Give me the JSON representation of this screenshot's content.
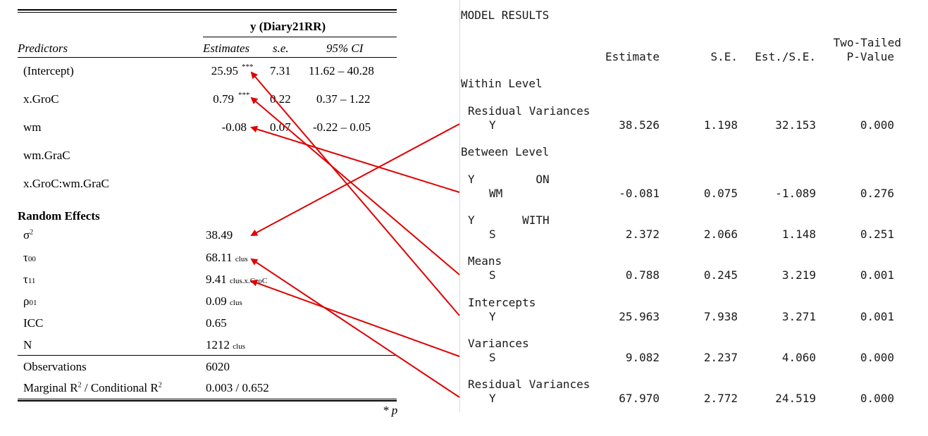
{
  "left_table": {
    "dep_var": "y (Diary21RR)",
    "headers": {
      "predictors": "Predictors",
      "estimates": "Estimates",
      "se": "s.e.",
      "ci": "95% CI"
    },
    "fixed": [
      {
        "name": "(Intercept)",
        "est": "25.95",
        "stars": "***",
        "se": "7.31",
        "ci": "11.62 – 40.28"
      },
      {
        "name": "x.GroC",
        "est": "0.79",
        "stars": "***",
        "se": "0.22",
        "ci": "0.37 – 1.22"
      },
      {
        "name": "wm",
        "est": "-0.08",
        "stars": "",
        "se": "0.07",
        "ci": "-0.22 – 0.05"
      },
      {
        "name": "wm.GraC",
        "est": "",
        "stars": "",
        "se": "",
        "ci": ""
      },
      {
        "name": "x.GroC:wm.GraC",
        "est": "",
        "stars": "",
        "se": "",
        "ci": ""
      }
    ],
    "random_title": "Random Effects",
    "random": [
      {
        "sym": "σ",
        "sup": "2",
        "sub": "",
        "val": "38.49",
        "vsub": ""
      },
      {
        "sym": "τ",
        "sup": "",
        "sub": "00",
        "val": "68.11",
        "vsub": "clus"
      },
      {
        "sym": "τ",
        "sup": "",
        "sub": "11",
        "val": "9.41",
        "vsub": "clus.x.GroC"
      },
      {
        "sym": "ρ",
        "sup": "",
        "sub": "01",
        "val": "0.09",
        "vsub": "clus"
      },
      {
        "sym": "ICC",
        "sup": "",
        "sub": "",
        "val": "0.65",
        "vsub": ""
      },
      {
        "sym": "N",
        "sup": "",
        "sub": "",
        "val": "1212",
        "vsub": "clus"
      }
    ],
    "observations": {
      "label": "Observations",
      "val": "6020"
    },
    "r2": {
      "label_a": "Marginal R",
      "label_b": " / Conditional R",
      "sup": "2",
      "val": "0.003 / 0.652"
    },
    "footnote": "* p"
  },
  "right_output": {
    "title": "MODEL RESULTS",
    "headers": {
      "estimate": "Estimate",
      "se": "S.E.",
      "ratio": "Est./S.E.",
      "pval_a": "Two-Tailed",
      "pval_b": "P-Value"
    },
    "within": "Within Level",
    "between": "Between Level",
    "blocks": [
      {
        "label": "Residual Variances",
        "sub": "Y",
        "est": "38.526",
        "se": "1.198",
        "ratio": "32.153",
        "p": "0.000"
      },
      {
        "label": "Y         ON",
        "sub": "WM",
        "est": "-0.081",
        "se": "0.075",
        "ratio": "-1.089",
        "p": "0.276"
      },
      {
        "label": "Y       WITH",
        "sub": "S",
        "est": "2.372",
        "se": "2.066",
        "ratio": "1.148",
        "p": "0.251"
      },
      {
        "label": "Means",
        "sub": "S",
        "est": "0.788",
        "se": "0.245",
        "ratio": "3.219",
        "p": "0.001"
      },
      {
        "label": "Intercepts",
        "sub": "Y",
        "est": "25.963",
        "se": "7.938",
        "ratio": "3.271",
        "p": "0.001"
      },
      {
        "label": "Variances",
        "sub": "S",
        "est": "9.082",
        "se": "2.237",
        "ratio": "4.060",
        "p": "0.000"
      },
      {
        "label": "Residual Variances",
        "sub": "Y",
        "est": "67.970",
        "se": "2.772",
        "ratio": "24.519",
        "p": "0.000"
      }
    ]
  },
  "arrow_color": "#e00000"
}
